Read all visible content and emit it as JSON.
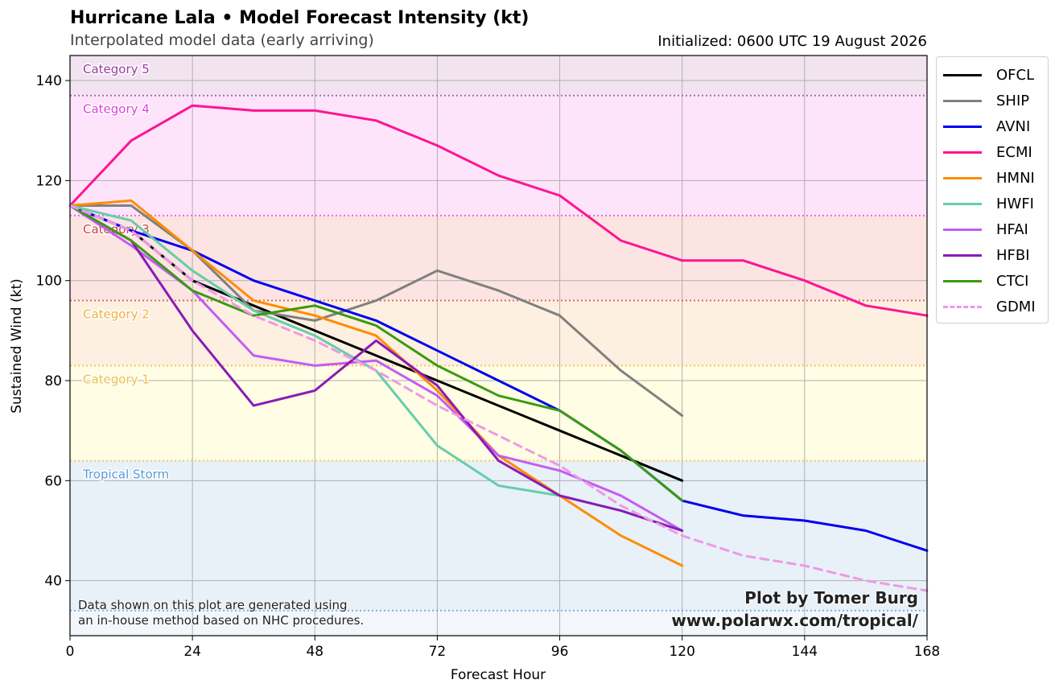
{
  "header": {
    "title": "Hurricane Lala • Model Forecast Intensity (kt)",
    "subtitle": "Interpolated model data (early arriving)",
    "initialized": "Initialized: 0600 UTC 19 August 2026"
  },
  "footer": {
    "credit_line1": "Plot by Tomer Burg",
    "credit_line2": "www.polarwx.com/tropical/",
    "disclaimer_line1": "Data shown on this plot are generated using",
    "disclaimer_line2": "an in-house method based on NHC procedures."
  },
  "chart_data": {
    "type": "line",
    "title": "Hurricane Lala • Model Forecast Intensity (kt)",
    "xlabel": "Forecast Hour",
    "ylabel": "Sustained Wind (kt)",
    "xlim": [
      0,
      168
    ],
    "ylim": [
      29,
      145
    ],
    "xticks": [
      0,
      24,
      48,
      72,
      96,
      120,
      144,
      168
    ],
    "yticks": [
      40,
      60,
      80,
      100,
      120,
      140
    ],
    "grid": true,
    "legend_position": "outside-right",
    "categories": [
      {
        "name": "Tropical Storm",
        "threshold": 34,
        "upper": 64,
        "color": "#5b9bd5",
        "fill": "#e8f0f8"
      },
      {
        "name": "Category 1",
        "threshold": 64,
        "upper": 83,
        "color": "#f0c040",
        "fill": "#fffde3"
      },
      {
        "name": "Category 2",
        "threshold": 83,
        "upper": 96,
        "color": "#f0b040",
        "fill": "#fdf0e0"
      },
      {
        "name": "Category 3",
        "threshold": 96,
        "upper": 113,
        "color": "#d04040",
        "fill": "#fbe4e2"
      },
      {
        "name": "Category 4",
        "threshold": 113,
        "upper": 137,
        "color": "#e040e0",
        "fill": "#fde4fa"
      },
      {
        "name": "Category 5",
        "threshold": 137,
        "upper": 145,
        "color": "#9a3ba0",
        "fill": "#f1e4f0"
      }
    ],
    "series": [
      {
        "name": "OFCL",
        "color": "#000000",
        "dash": false,
        "x": [
          0,
          12,
          24,
          36,
          48,
          60,
          72,
          84,
          96,
          108,
          120
        ],
        "y": [
          115,
          110,
          100,
          95,
          90,
          85,
          80,
          75,
          70,
          65,
          60
        ]
      },
      {
        "name": "SHIP",
        "color": "#808080",
        "dash": false,
        "x": [
          0,
          12,
          24,
          36,
          48,
          60,
          72,
          84,
          96,
          108,
          120
        ],
        "y": [
          115,
          115,
          106,
          94,
          92,
          96,
          102,
          98,
          93,
          82,
          73
        ]
      },
      {
        "name": "AVNI",
        "color": "#0000ee",
        "dash": false,
        "x": [
          0,
          12,
          24,
          36,
          48,
          60,
          72,
          84,
          96,
          108,
          120,
          132,
          144,
          156,
          168
        ],
        "y": [
          115,
          110,
          106,
          100,
          96,
          92,
          86,
          80,
          74,
          66,
          56,
          53,
          52,
          50,
          46
        ]
      },
      {
        "name": "ECMI",
        "color": "#ff1493",
        "dash": false,
        "x": [
          0,
          12,
          24,
          36,
          48,
          60,
          72,
          84,
          96,
          108,
          120,
          132,
          144,
          156,
          168
        ],
        "y": [
          115,
          128,
          135,
          134,
          134,
          132,
          127,
          121,
          117,
          108,
          104,
          104,
          100,
          95,
          93
        ]
      },
      {
        "name": "HMNI",
        "color": "#ff8c00",
        "dash": false,
        "x": [
          0,
          12,
          24,
          36,
          48,
          60,
          72,
          84,
          96,
          108,
          120
        ],
        "y": [
          115,
          116,
          106,
          96,
          93,
          89,
          78,
          65,
          57,
          49,
          43
        ]
      },
      {
        "name": "HWFI",
        "color": "#66cdaa",
        "dash": false,
        "x": [
          0,
          12,
          24,
          36,
          48,
          60,
          72,
          84,
          96,
          108,
          120
        ],
        "y": [
          115,
          112,
          102,
          94,
          89,
          82,
          67,
          59,
          57,
          54,
          50
        ]
      },
      {
        "name": "HFAI",
        "color": "#c45cf2",
        "dash": false,
        "x": [
          0,
          12,
          24,
          36,
          48,
          60,
          72,
          84,
          96,
          108,
          120
        ],
        "y": [
          115,
          107,
          98,
          85,
          83,
          84,
          77,
          65,
          62,
          57,
          50
        ]
      },
      {
        "name": "HFBI",
        "color": "#8a1ab6",
        "dash": false,
        "x": [
          0,
          12,
          24,
          36,
          48,
          60,
          72,
          84,
          96,
          108,
          120
        ],
        "y": [
          115,
          108,
          90,
          75,
          78,
          88,
          79,
          64,
          57,
          54,
          50
        ]
      },
      {
        "name": "CTCI",
        "color": "#3a9a12",
        "dash": false,
        "x": [
          0,
          12,
          24,
          36,
          48,
          60,
          72,
          84,
          96,
          108,
          120
        ],
        "y": [
          115,
          108,
          98,
          93,
          95,
          91,
          83,
          77,
          74,
          66,
          56
        ]
      },
      {
        "name": "GDMI",
        "color": "#ee99e6",
        "dash": true,
        "x": [
          0,
          12,
          24,
          36,
          48,
          60,
          72,
          84,
          96,
          108,
          120,
          132,
          144,
          156,
          168
        ],
        "y": [
          115,
          110,
          100,
          93,
          88,
          82,
          75,
          69,
          63,
          55,
          49,
          45,
          43,
          40,
          38
        ]
      }
    ]
  }
}
